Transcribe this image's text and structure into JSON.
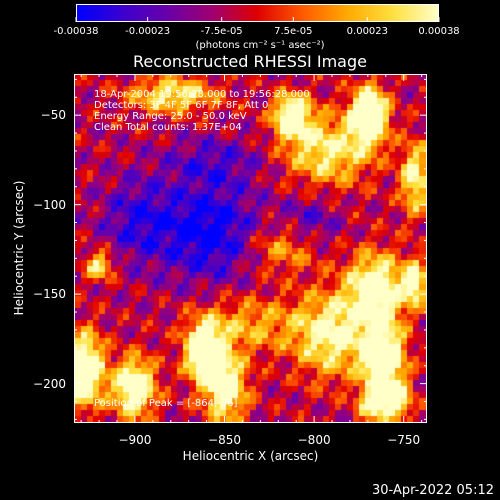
{
  "colorbar": {
    "tick_labels": [
      "-0.00038",
      "-0.00023",
      "-7.5e-05",
      "7.5e-05",
      "0.00023",
      "0.00038"
    ],
    "tick_values": [
      -0.00038,
      -0.00023,
      -7.5e-05,
      7.5e-05,
      0.00023,
      0.00038
    ],
    "range": [
      -0.00038,
      0.00038
    ],
    "unit_label": "(photons cm⁻² s⁻¹ asec⁻²)",
    "colors": [
      "#0000ff",
      "#3c00d0",
      "#6a00a8",
      "#a00070",
      "#e00000",
      "#ff5a00",
      "#ffaa00",
      "#ffe040",
      "#ffffc8"
    ]
  },
  "chart_data": {
    "type": "heatmap",
    "title": "Reconstructed RHESSI Image",
    "xlabel": "Heliocentric X (arcsec)",
    "ylabel": "Heliocentric Y (arcsec)",
    "xlim": [
      -934,
      -737
    ],
    "ylim": [
      -222,
      -27
    ],
    "x_ticks": [
      -900,
      -850,
      -800,
      -750
    ],
    "x_tick_labels": [
      "−900",
      "−850",
      "−800",
      "−750"
    ],
    "y_ticks": [
      -50,
      -100,
      -150,
      -200
    ],
    "y_tick_labels": [
      "−50",
      "−100",
      "−150",
      "−200"
    ],
    "annotations": [
      "18-Apr-2004 19:56:28.000 to 19:56:28.000",
      "Detectors: 3F 4F 5F 6F 7F 8F, Att 0",
      "Energy Range: 25.0 - 50.0 keV",
      "Clean     Total counts: 1.37E+04"
    ],
    "peak_label": "Position of Peak = [-864,-36]",
    "peak": [
      -864,
      -36
    ],
    "grid": false
  },
  "timestamp": "30-Apr-2022 05:12"
}
